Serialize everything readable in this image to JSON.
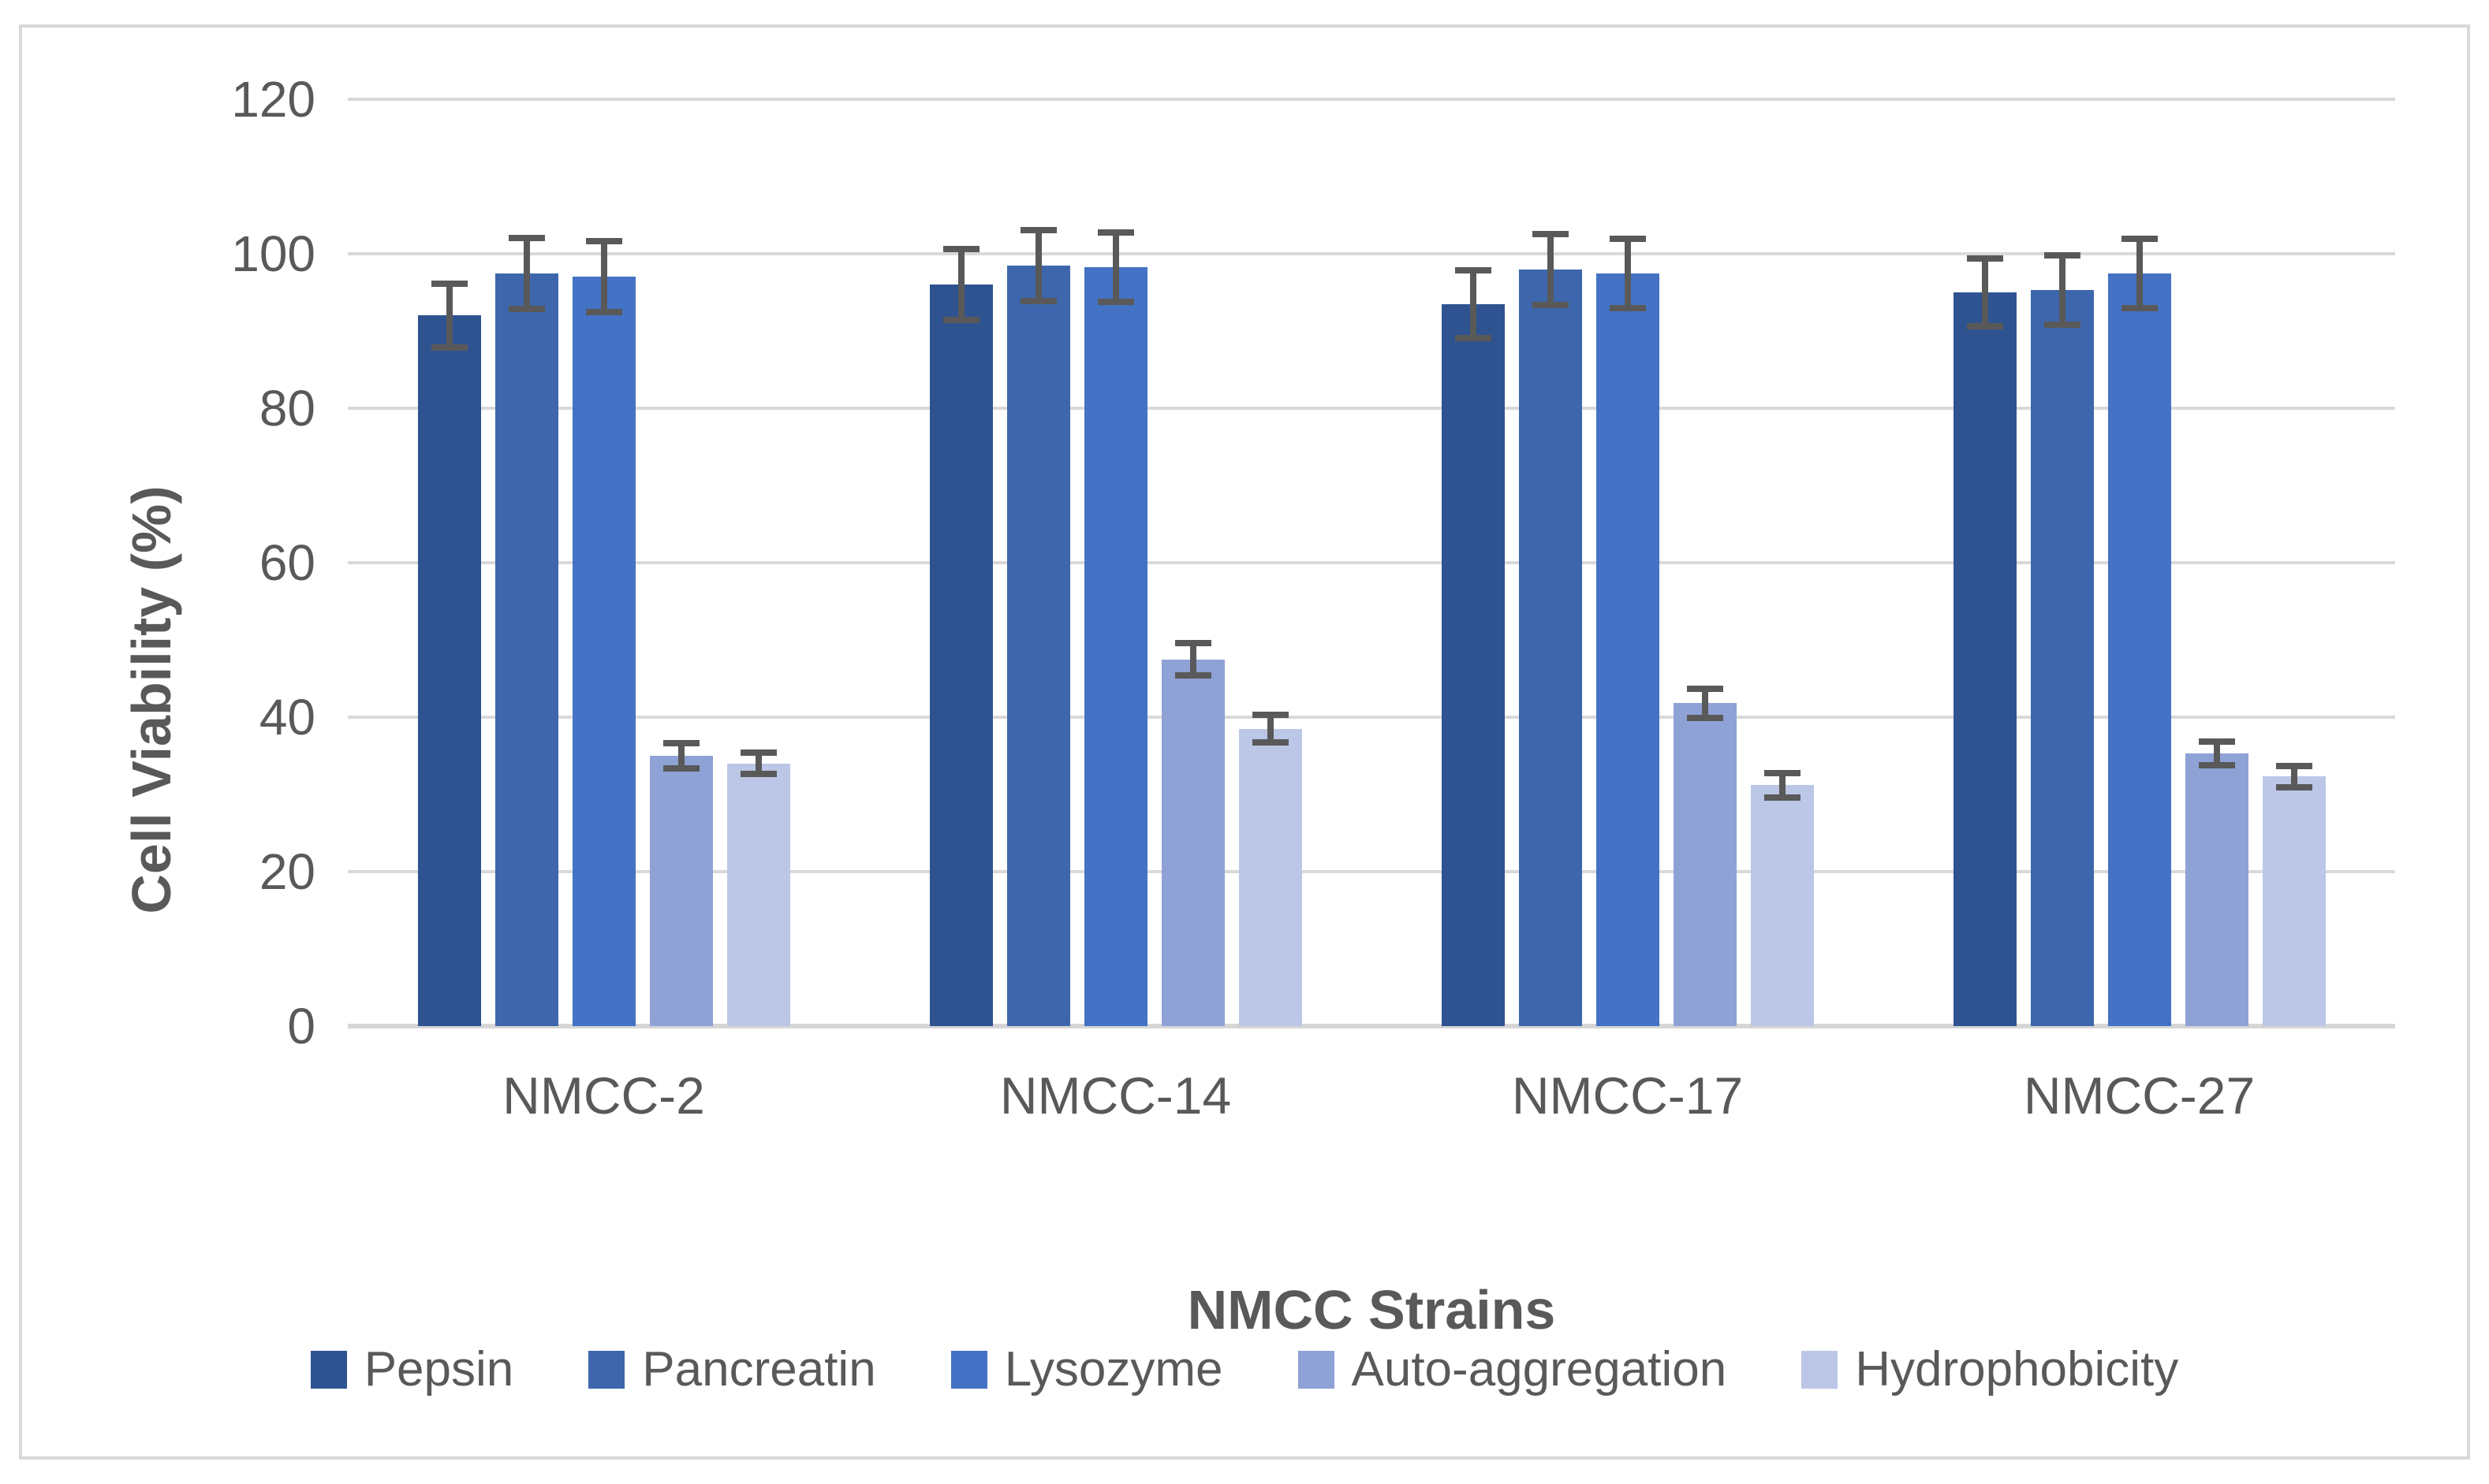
{
  "chart_data": {
    "type": "bar",
    "title": "",
    "xlabel": "NMCC Strains",
    "ylabel": "Cell Viability (%)",
    "categories": [
      "NMCC-2",
      "NMCC-14",
      "NMCC-17",
      "NMCC-27"
    ],
    "series": [
      {
        "name": "Pepsin",
        "color": "#2F5391",
        "values": [
          92,
          96,
          93.5,
          95
        ],
        "errors": [
          4.5,
          5,
          4.8,
          4.8
        ]
      },
      {
        "name": "Pancreatin",
        "color": "#3D66AC",
        "values": [
          97.5,
          98.5,
          98,
          95.3
        ],
        "errors": [
          5,
          5,
          5,
          4.9
        ]
      },
      {
        "name": "Lysozyme",
        "color": "#4472C4",
        "values": [
          97,
          98.3,
          97.5,
          97.5
        ],
        "errors": [
          5,
          4.9,
          4.9,
          4.9
        ]
      },
      {
        "name": "Auto-aggregation",
        "color": "#8FA2D6",
        "values": [
          35,
          47.5,
          41.8,
          35.3
        ],
        "errors": [
          2,
          2.5,
          2.3,
          1.9
        ]
      },
      {
        "name": "Hydrophobicity",
        "color": "#BCC6E7",
        "values": [
          34,
          38.5,
          31.2,
          32.3
        ],
        "errors": [
          1.8,
          2.2,
          2,
          1.8
        ]
      }
    ],
    "ylim": [
      0,
      120
    ],
    "yticks": [
      0,
      20,
      40,
      60,
      80,
      100,
      120
    ],
    "grid": true,
    "legend_position": "bottom",
    "colors": {
      "gridline": "#D9D9D9",
      "axis_line": "#D6D6D6",
      "error_bar": "#595959",
      "tick_text": "#595959",
      "title_text": "#595959",
      "frame_border": "#D9D9D9",
      "background": "#FFFFFF"
    }
  }
}
